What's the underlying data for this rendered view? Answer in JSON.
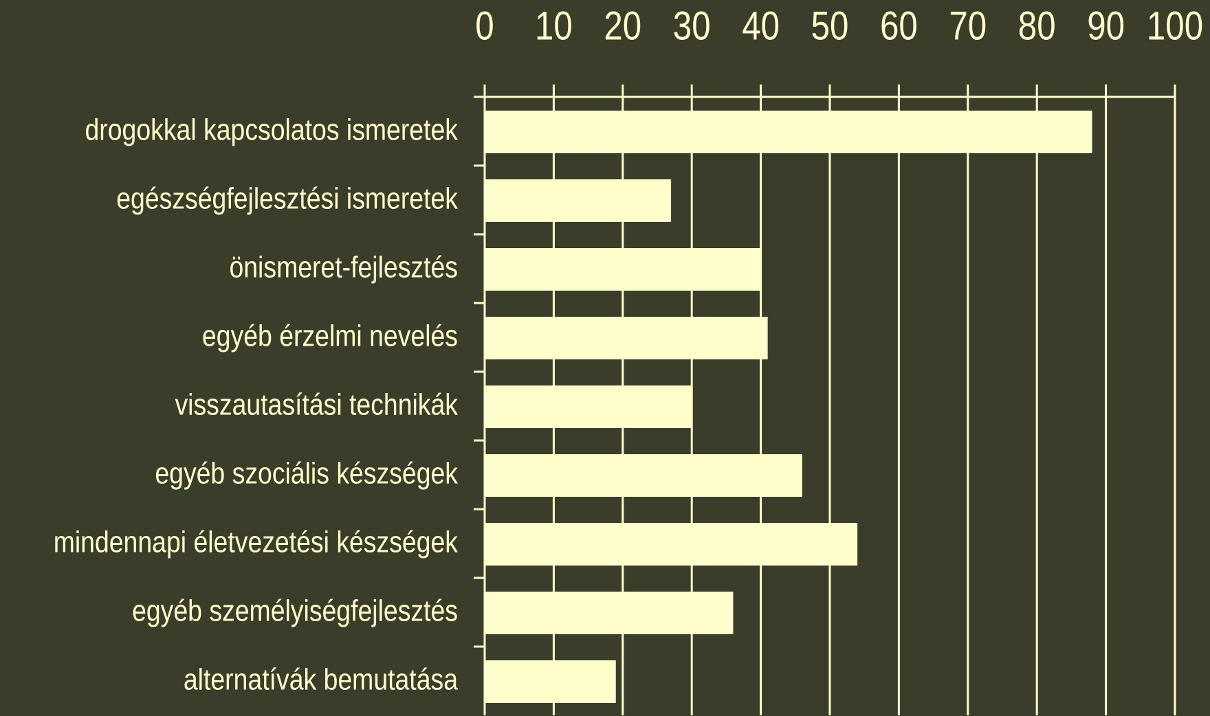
{
  "chart_data": {
    "type": "bar",
    "orientation": "horizontal",
    "categories": [
      "drogokkal kapcsolatos ismeretek",
      "egészségfejlesztési ismeretek",
      "önismeret-fejlesztés",
      "egyéb érzelmi nevelés",
      "visszautasítási technikák",
      "egyéb szociális készségek",
      "mindennapi életvezetési készségek",
      "egyéb személyiségfejlesztés",
      "alternatívák bemutatása"
    ],
    "values": [
      88,
      27,
      40,
      41,
      30,
      46,
      54,
      36,
      19
    ],
    "color": "#ffffcc",
    "xlim": [
      0,
      100
    ],
    "xticks": [
      0,
      10,
      20,
      30,
      40,
      50,
      60,
      70,
      80,
      90,
      100
    ],
    "grid": true
  }
}
